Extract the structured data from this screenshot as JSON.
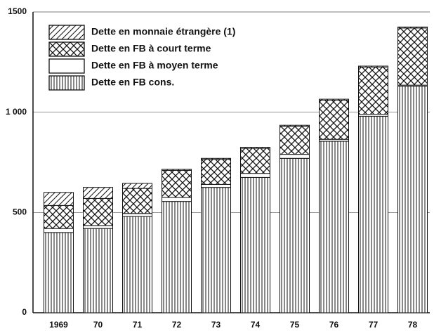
{
  "chart_data": {
    "type": "stacked_bar",
    "categories": [
      "1969",
      "70",
      "71",
      "72",
      "73",
      "74",
      "75",
      "76",
      "77",
      "78"
    ],
    "series": [
      {
        "name": "Dette en FB cons.",
        "color": "#111111",
        "pattern": "vertical",
        "values": [
          400,
          420,
          480,
          555,
          625,
          675,
          770,
          855,
          980,
          1130
        ]
      },
      {
        "name": "Dette en FB à moyen terme",
        "color": "#111111",
        "pattern": "none",
        "values": [
          20,
          15,
          15,
          20,
          15,
          20,
          20,
          10,
          10,
          5
        ]
      },
      {
        "name": "Dette en FB à court terme",
        "color": "#111111",
        "pattern": "crosshatch",
        "values": [
          115,
          135,
          125,
          135,
          125,
          125,
          140,
          195,
          235,
          285
        ]
      },
      {
        "name": "Dette en monnaie étrangère (1)",
        "color": "#111111",
        "pattern": "diagonal",
        "values": [
          65,
          55,
          25,
          5,
          5,
          5,
          5,
          5,
          5,
          5
        ]
      }
    ],
    "ylim": [
      0,
      1500
    ],
    "yticks": [
      0,
      500,
      {
        "value": 1000,
        "label": "1 000"
      },
      1500
    ],
    "grid": true,
    "legend": "upper left"
  }
}
